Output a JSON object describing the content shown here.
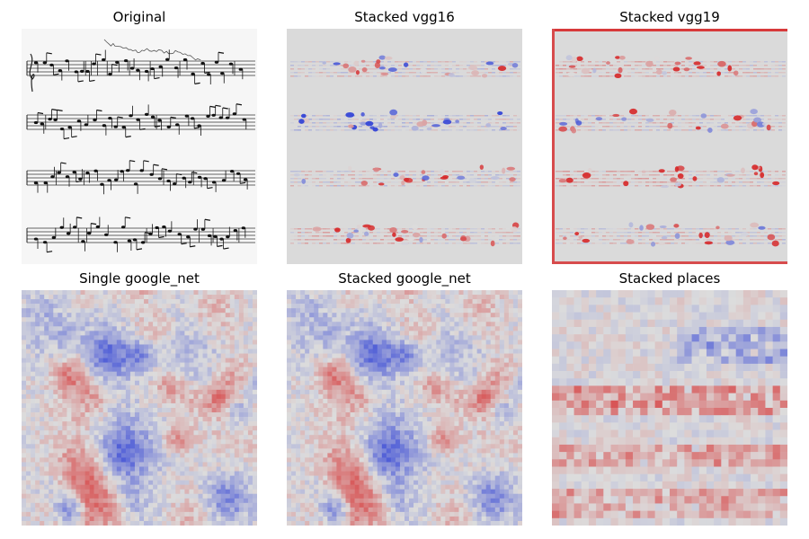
{
  "panels": [
    {
      "id": "original",
      "title": "Original",
      "type": "sheet-music"
    },
    {
      "id": "stacked_vgg16",
      "title": "Stacked vgg16",
      "type": "heatmap-smooth"
    },
    {
      "id": "stacked_vgg19",
      "title": "Stacked vgg19",
      "type": "heatmap-smooth"
    },
    {
      "id": "single_google_net",
      "title": "Single google_net",
      "type": "heatmap-noise"
    },
    {
      "id": "stacked_google_net",
      "title": "Stacked google_net",
      "type": "heatmap-noise"
    },
    {
      "id": "stacked_places",
      "title": "Stacked places",
      "type": "heatmap-blocks"
    }
  ],
  "colors": {
    "positive": "#d62728",
    "negative": "#2c3ed6",
    "neutral": "#dcdcdc"
  }
}
